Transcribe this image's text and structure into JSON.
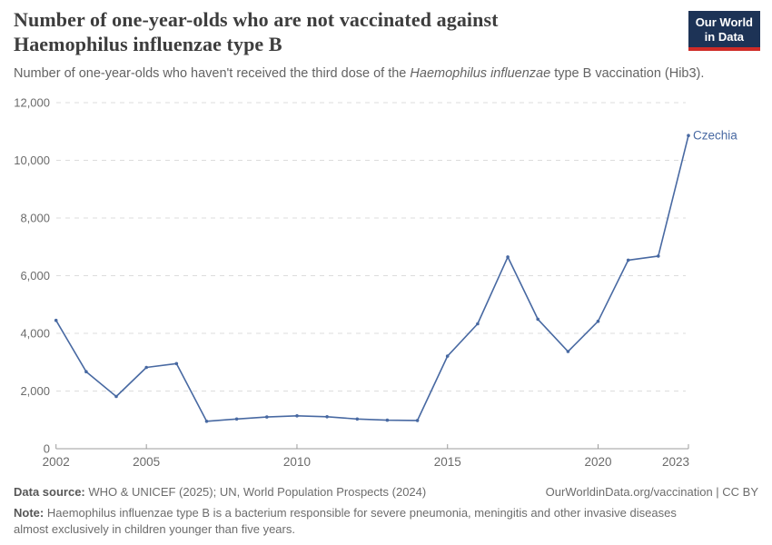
{
  "header": {
    "title": "Number of one-year-olds who are not vaccinated against Haemophilus influenzae type B",
    "subtitle_before": "Number of one-year-olds who haven't received the third dose of the ",
    "subtitle_italic": "Haemophilus influenzae",
    "subtitle_after": " type B vaccination (Hib3).",
    "logo_line1": "Our World",
    "logo_line2": "in Data",
    "logo_bg_color": "#1d3356",
    "logo_accent_color": "#cf2b27"
  },
  "footer": {
    "source_label": "Data source:",
    "source_text": "WHO & UNICEF (2025); UN, World Population Prospects (2024)",
    "link_text": "OurWorldinData.org/vaccination | CC BY",
    "note_label": "Note:",
    "note_text": "Haemophilus influenzae type B is a bacterium responsible for severe pneumonia, meningitis and other invasive diseases almost exclusively in children younger than five years."
  },
  "chart_data": {
    "type": "line",
    "title": "Number of one-year-olds who are not vaccinated against Haemophilus influenzae type B",
    "subtitle": "Number of one-year-olds who haven't received the third dose of the Haemophilus influenzae type B vaccination (Hib3).",
    "x": [
      2002,
      2003,
      2004,
      2005,
      2006,
      2007,
      2008,
      2009,
      2010,
      2011,
      2012,
      2013,
      2014,
      2015,
      2016,
      2017,
      2018,
      2019,
      2020,
      2021,
      2022,
      2023
    ],
    "series": [
      {
        "name": "Czechia",
        "values": [
          4450,
          2670,
          1810,
          2820,
          2950,
          950,
          1030,
          1100,
          1140,
          1110,
          1030,
          990,
          980,
          3210,
          4330,
          6650,
          4490,
          3370,
          4420,
          6540,
          6680,
          10860
        ]
      }
    ],
    "xticks": [
      2002,
      2005,
      2010,
      2015,
      2020,
      2023
    ],
    "yticks": [
      0,
      2000,
      4000,
      6000,
      8000,
      10000,
      12000
    ],
    "ylim": [
      0,
      12000
    ],
    "xlim": [
      2002,
      2023
    ],
    "grid": "horizontal-dashed",
    "legend_position": "end-of-line-label",
    "colors": {
      "line": "#4869a2",
      "grid": "#dcdcdc",
      "axis": "#9c9c9c",
      "tick_label": "#6b6b6b"
    }
  }
}
